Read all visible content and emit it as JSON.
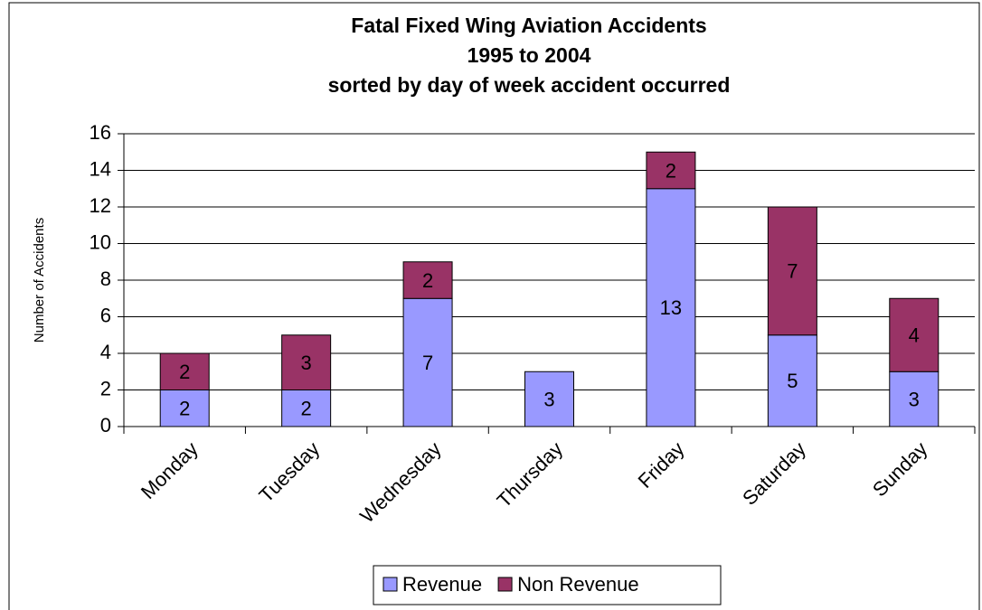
{
  "chart_data": {
    "type": "bar",
    "stacked": true,
    "title": [
      "Fatal Fixed Wing Aviation Accidents",
      "1995 to 2004",
      "sorted by day of week accident occurred"
    ],
    "y_label": "Number of Accidents",
    "categories": [
      "Monday",
      "Tuesday",
      "Wednesday",
      "Thursday",
      "Friday",
      "Saturday",
      "Sunday"
    ],
    "series": [
      {
        "name": "Revenue",
        "color": "#9999ff",
        "values": [
          2,
          2,
          7,
          3,
          13,
          5,
          3
        ]
      },
      {
        "name": "Non Revenue",
        "color": "#993366",
        "values": [
          2,
          3,
          2,
          0,
          2,
          7,
          4
        ]
      }
    ],
    "ylim": [
      0,
      16
    ],
    "yticks": [
      0,
      2,
      4,
      6,
      8,
      10,
      12,
      14,
      16
    ],
    "grid": true,
    "legend": "bottom"
  }
}
